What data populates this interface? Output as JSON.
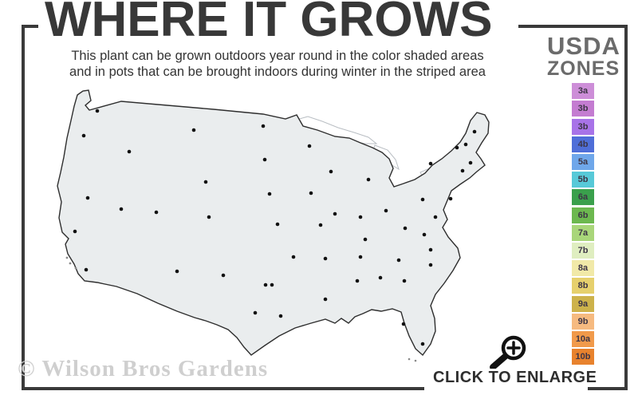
{
  "header": {
    "title": "WHERE IT GROWS",
    "subtitle_line1": "This plant can be grown outdoors year round in the color shaded areas",
    "subtitle_line2": "and in pots that can be brought indoors during winter in the striped area"
  },
  "legend": {
    "title_line1": "USDA",
    "title_line2": "ZONES",
    "zones": [
      {
        "label": "3a",
        "color": "#cd8ed8"
      },
      {
        "label": "3b",
        "color": "#c47cd1"
      },
      {
        "label": "3b",
        "color": "#a873e8"
      },
      {
        "label": "4b",
        "color": "#4f6ed8"
      },
      {
        "label": "5a",
        "color": "#6fa7ea"
      },
      {
        "label": "5b",
        "color": "#57c9d8"
      },
      {
        "label": "6a",
        "color": "#3aa04c"
      },
      {
        "label": "6b",
        "color": "#6cb84f"
      },
      {
        "label": "7a",
        "color": "#a9d67a"
      },
      {
        "label": "7b",
        "color": "#dfeec0"
      },
      {
        "label": "8a",
        "color": "#f1e9a8"
      },
      {
        "label": "8b",
        "color": "#e6d06d"
      },
      {
        "label": "9a",
        "color": "#cdb24b"
      },
      {
        "label": "9b",
        "color": "#f6ba80"
      },
      {
        "label": "10a",
        "color": "#f19a4b"
      },
      {
        "label": "10b",
        "color": "#e8822d"
      }
    ]
  },
  "map": {
    "colors": {
      "base": "#eaedee",
      "stripe": "#ffffff",
      "lake": "#ffffff",
      "lake_outline": "#b9bec3",
      "state_border": "#3f3f3f",
      "outline": "#2e2e2e",
      "dot": "#111111",
      "speck": "#8a8a8a"
    }
  },
  "footer": {
    "watermark": "© Wilson Bros Gardens",
    "enlarge_label": "CLICK TO ENLARGE",
    "enlarge_icon": "magnifier-plus"
  }
}
